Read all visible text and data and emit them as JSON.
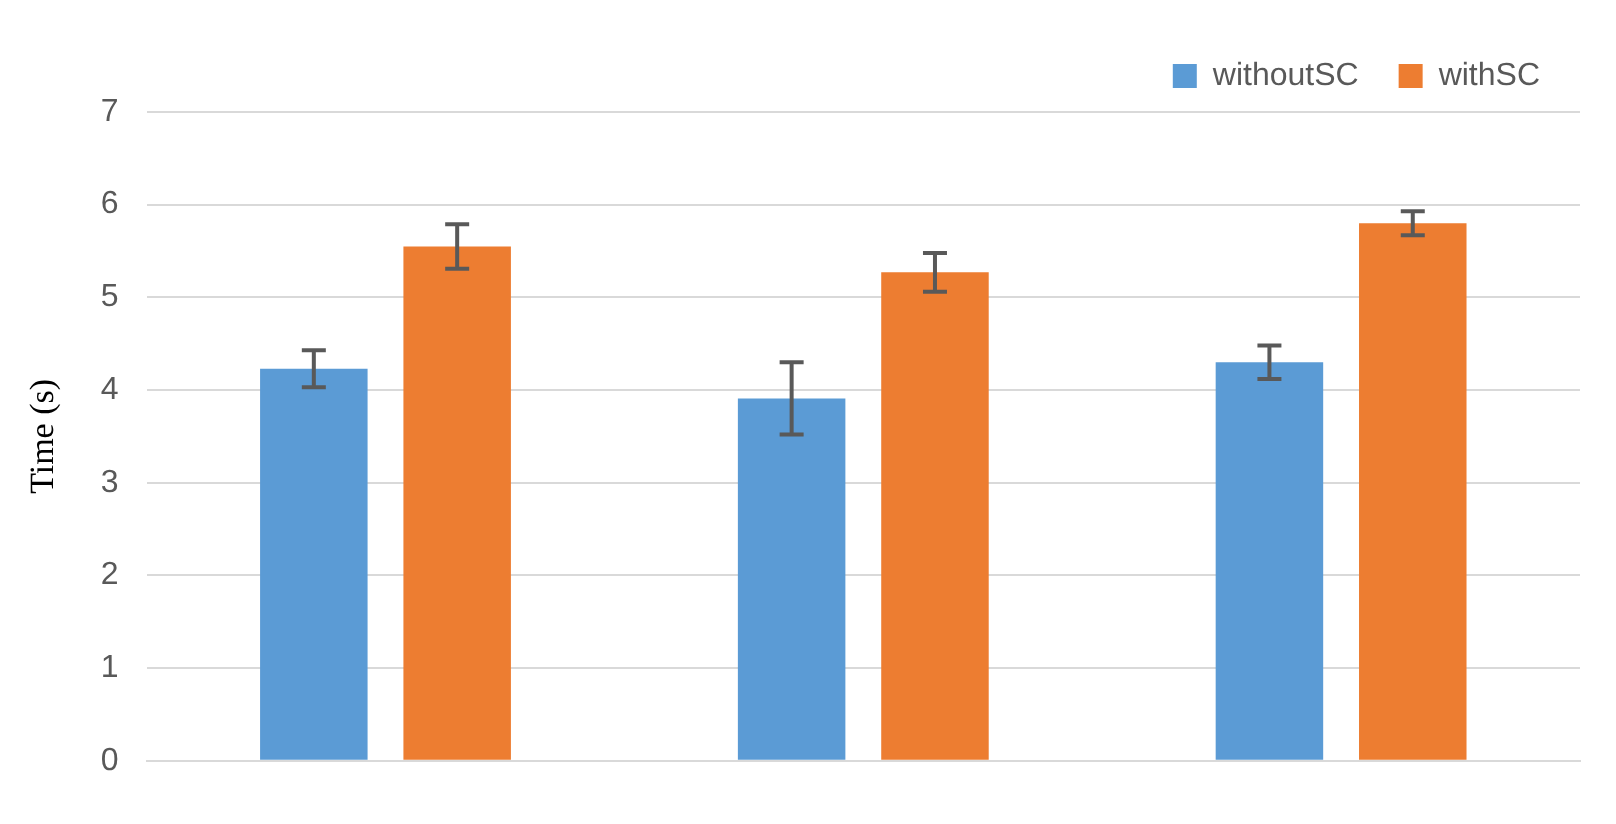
{
  "chart_data": {
    "type": "bar",
    "ylabel": "Time (s)",
    "categories": [
      null,
      null,
      null
    ],
    "series": [
      {
        "name": "withoutSC",
        "color": "#5b9bd5",
        "values": [
          4.23,
          3.91,
          4.3
        ],
        "errors": [
          0.2,
          0.39,
          0.18
        ]
      },
      {
        "name": "withSC",
        "color": "#ed7d31",
        "values": [
          5.55,
          5.27,
          5.8
        ],
        "errors": [
          0.24,
          0.21,
          0.13
        ]
      }
    ],
    "ylim": [
      0,
      7
    ],
    "yticks": [
      0,
      1,
      2,
      3,
      4,
      5,
      6,
      7
    ],
    "grid": "y",
    "legend": "top right"
  }
}
